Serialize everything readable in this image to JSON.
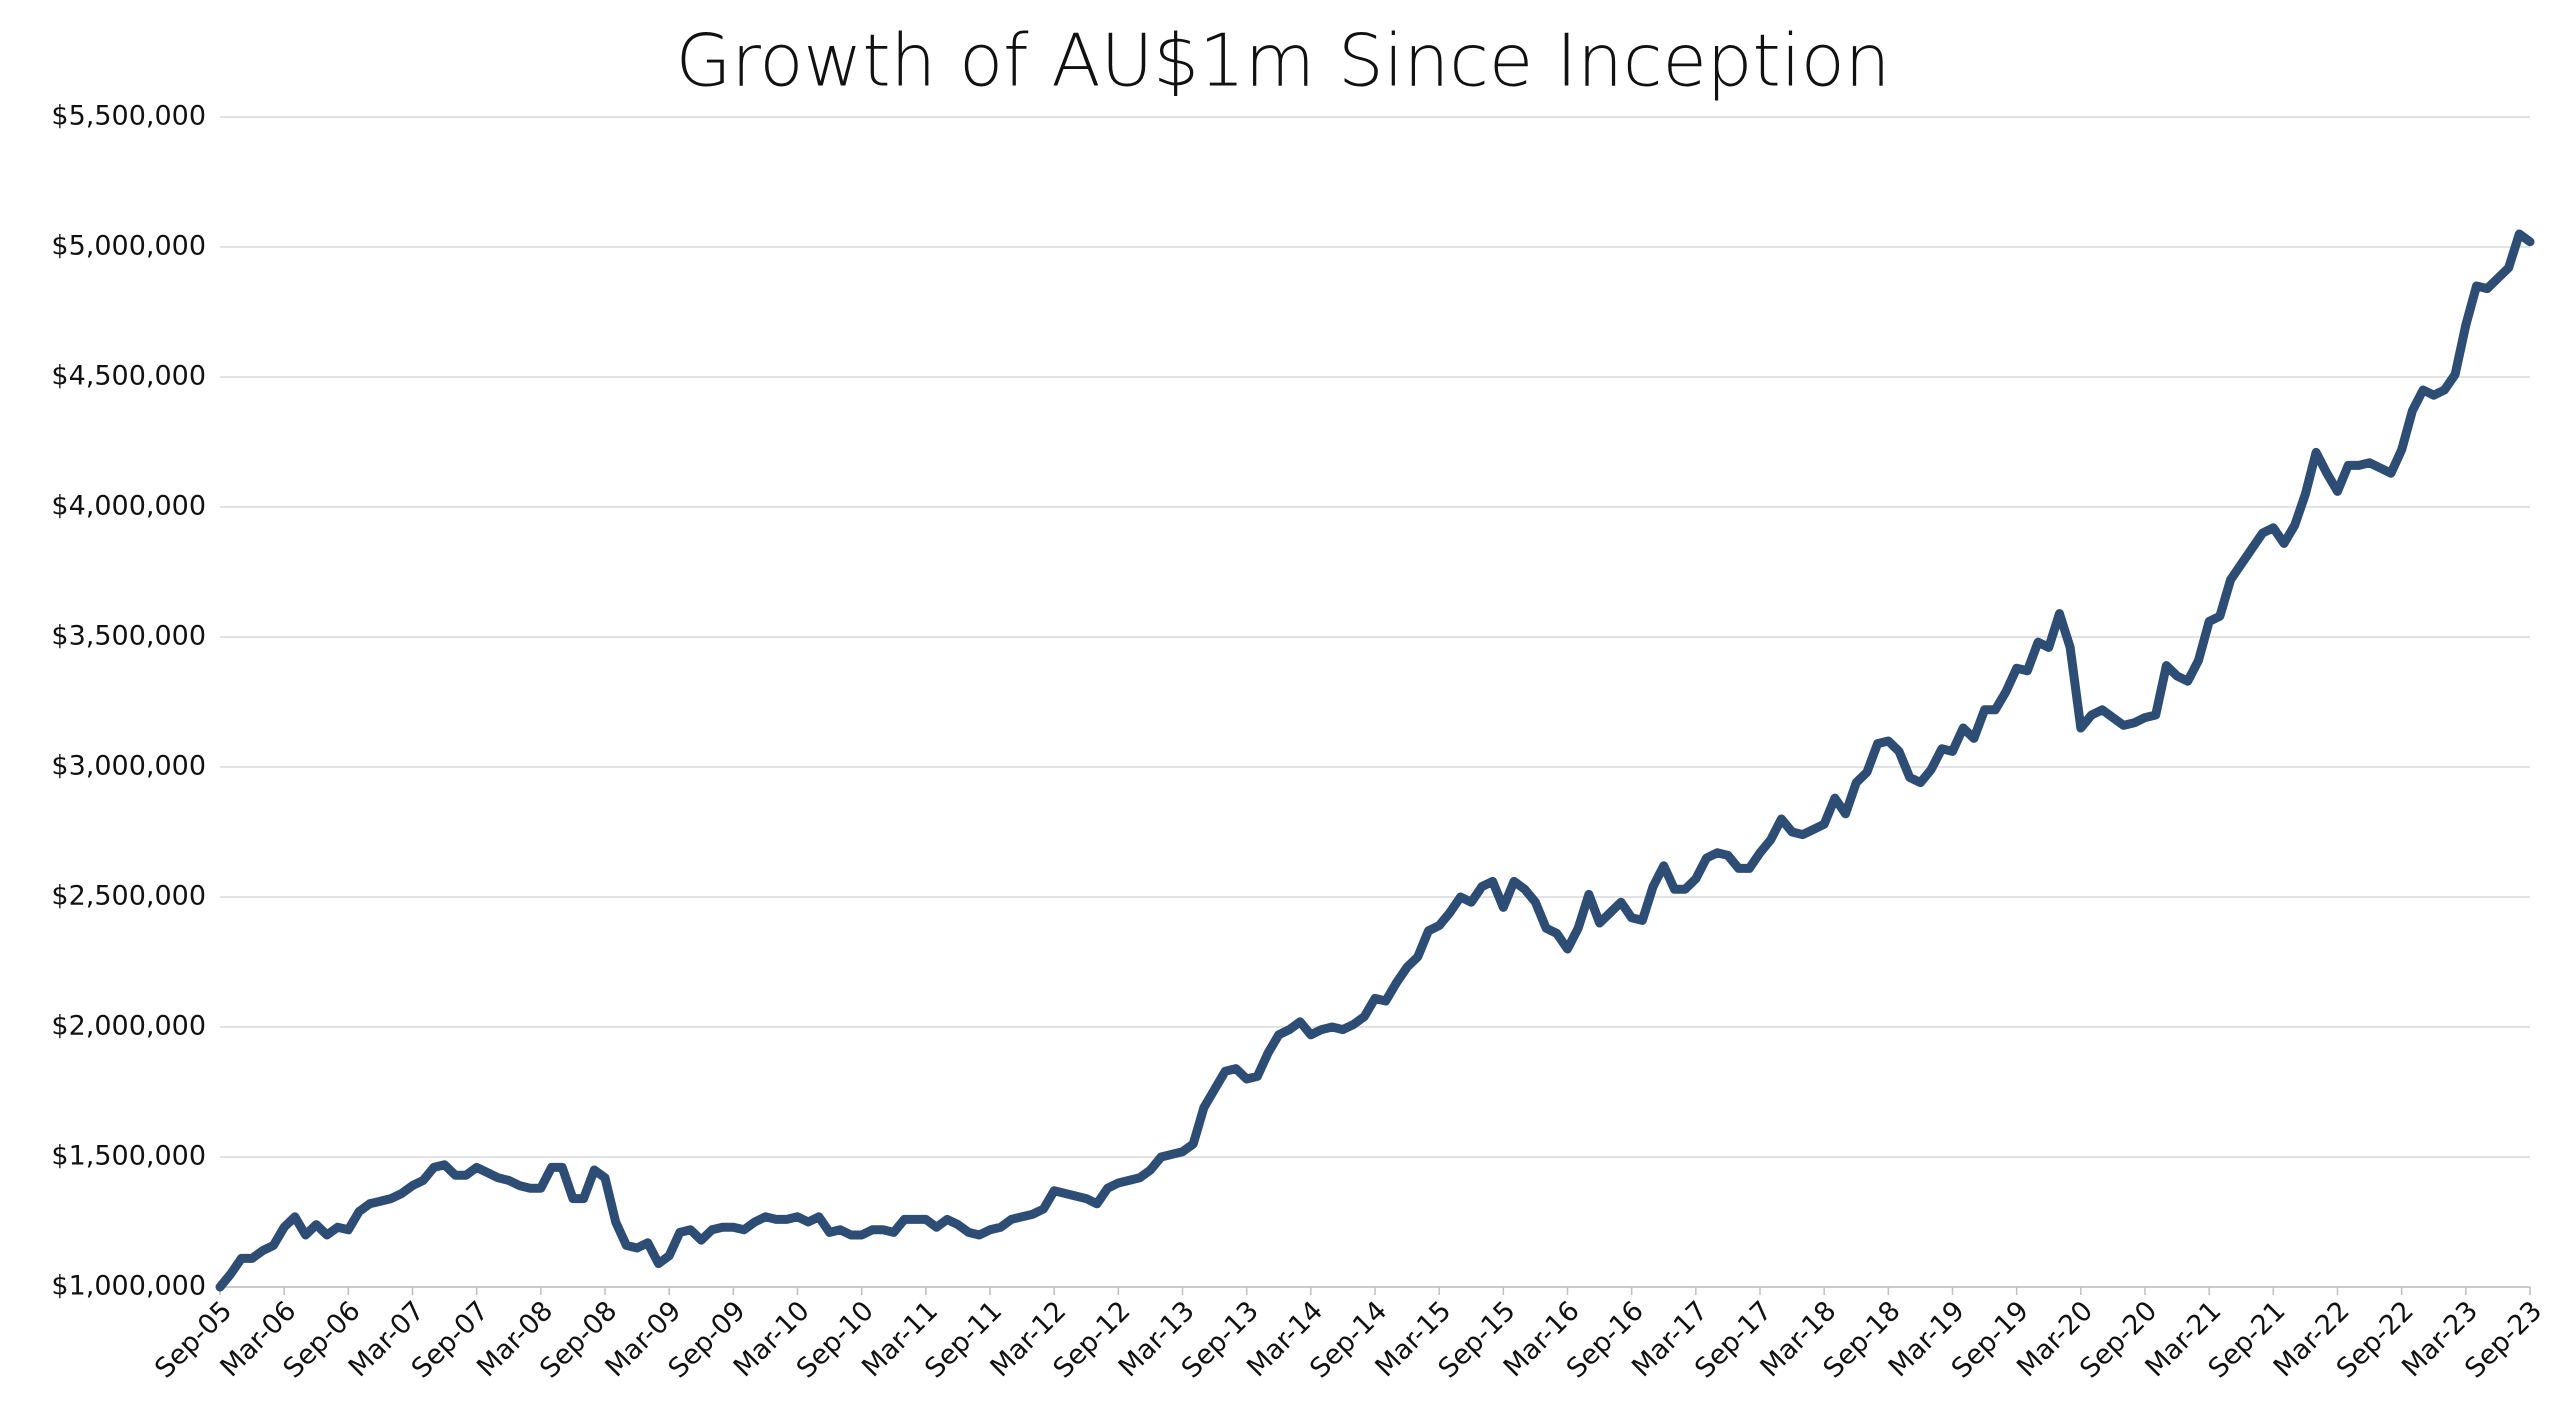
{
  "chart_data": {
    "type": "line",
    "title": "Growth of AU$1m Since Inception",
    "categories": [
      "Sep-05",
      null,
      null,
      null,
      null,
      null,
      "Mar-06",
      null,
      null,
      null,
      null,
      null,
      "Sep-06",
      null,
      null,
      null,
      null,
      null,
      "Mar-07",
      null,
      null,
      null,
      null,
      null,
      "Sep-07",
      null,
      null,
      null,
      null,
      null,
      "Mar-08",
      null,
      null,
      null,
      null,
      null,
      "Sep-08",
      null,
      null,
      null,
      null,
      null,
      "Mar-09",
      null,
      null,
      null,
      null,
      null,
      "Sep-09",
      null,
      null,
      null,
      null,
      null,
      "Mar-10",
      null,
      null,
      null,
      null,
      null,
      "Sep-10",
      null,
      null,
      null,
      null,
      null,
      "Mar-11",
      null,
      null,
      null,
      null,
      null,
      "Sep-11",
      null,
      null,
      null,
      null,
      null,
      "Mar-12",
      null,
      null,
      null,
      null,
      null,
      "Sep-12",
      null,
      null,
      null,
      null,
      null,
      "Mar-13",
      null,
      null,
      null,
      null,
      null,
      "Sep-13",
      null,
      null,
      null,
      null,
      null,
      "Mar-14",
      null,
      null,
      null,
      null,
      null,
      "Sep-14",
      null,
      null,
      null,
      null,
      null,
      "Mar-15",
      null,
      null,
      null,
      null,
      null,
      "Sep-15",
      null,
      null,
      null,
      null,
      null,
      "Mar-16",
      null,
      null,
      null,
      null,
      null,
      "Sep-16",
      null,
      null,
      null,
      null,
      null,
      "Mar-17",
      null,
      null,
      null,
      null,
      null,
      "Sep-17",
      null,
      null,
      null,
      null,
      null,
      "Mar-18",
      null,
      null,
      null,
      null,
      null,
      "Sep-18",
      null,
      null,
      null,
      null,
      null,
      "Mar-19",
      null,
      null,
      null,
      null,
      null,
      "Sep-19",
      null,
      null,
      null,
      null,
      null,
      "Mar-20",
      null,
      null,
      null,
      null,
      null,
      "Sep-20",
      null,
      null,
      null,
      null,
      null,
      "Mar-21",
      null,
      null,
      null,
      null,
      null,
      "Sep-21",
      null,
      null,
      null,
      null,
      null,
      "Mar-22",
      null,
      null,
      null,
      null,
      null,
      "Sep-22",
      null,
      null,
      null,
      null,
      null,
      "Mar-23",
      null,
      null,
      null,
      null,
      null,
      "Sep-23"
    ],
    "values": [
      1000000,
      1050000,
      1110000,
      1110000,
      1140000,
      1160000,
      1230000,
      1270000,
      1200000,
      1240000,
      1200000,
      1230000,
      1220000,
      1290000,
      1320000,
      1330000,
      1340000,
      1360000,
      1390000,
      1410000,
      1460000,
      1470000,
      1430000,
      1430000,
      1460000,
      1440000,
      1420000,
      1410000,
      1390000,
      1380000,
      1380000,
      1460000,
      1460000,
      1340000,
      1340000,
      1450000,
      1420000,
      1250000,
      1160000,
      1150000,
      1170000,
      1090000,
      1120000,
      1210000,
      1220000,
      1180000,
      1220000,
      1230000,
      1230000,
      1220000,
      1250000,
      1270000,
      1260000,
      1260000,
      1270000,
      1250000,
      1270000,
      1210000,
      1220000,
      1200000,
      1200000,
      1220000,
      1220000,
      1210000,
      1260000,
      1260000,
      1260000,
      1230000,
      1260000,
      1240000,
      1210000,
      1200000,
      1220000,
      1230000,
      1260000,
      1270000,
      1280000,
      1300000,
      1370000,
      1360000,
      1350000,
      1340000,
      1320000,
      1380000,
      1400000,
      1410000,
      1420000,
      1450000,
      1500000,
      1510000,
      1520000,
      1550000,
      1690000,
      1760000,
      1830000,
      1840000,
      1800000,
      1810000,
      1900000,
      1970000,
      1990000,
      2020000,
      1970000,
      1990000,
      2000000,
      1990000,
      2010000,
      2040000,
      2110000,
      2100000,
      2170000,
      2230000,
      2270000,
      2370000,
      2390000,
      2440000,
      2500000,
      2480000,
      2540000,
      2560000,
      2460000,
      2560000,
      2530000,
      2480000,
      2380000,
      2360000,
      2300000,
      2380000,
      2510000,
      2400000,
      2440000,
      2480000,
      2420000,
      2410000,
      2540000,
      2620000,
      2530000,
      2530000,
      2570000,
      2650000,
      2670000,
      2660000,
      2610000,
      2610000,
      2670000,
      2720000,
      2800000,
      2750000,
      2740000,
      2760000,
      2780000,
      2880000,
      2820000,
      2940000,
      2980000,
      3090000,
      3100000,
      3060000,
      2960000,
      2940000,
      2990000,
      3070000,
      3060000,
      3150000,
      3110000,
      3220000,
      3220000,
      3290000,
      3380000,
      3370000,
      3480000,
      3460000,
      3590000,
      3460000,
      3150000,
      3200000,
      3220000,
      3190000,
      3160000,
      3170000,
      3190000,
      3200000,
      3390000,
      3350000,
      3330000,
      3410000,
      3560000,
      3580000,
      3720000,
      3780000,
      3840000,
      3900000,
      3920000,
      3860000,
      3930000,
      4050000,
      4210000,
      4130000,
      4060000,
      4160000,
      4160000,
      4170000,
      4150000,
      4130000,
      4220000,
      4370000,
      4450000,
      4430000,
      4450000,
      4510000,
      4700000,
      4850000,
      4840000,
      4880000,
      4920000,
      5050000,
      5020000
    ],
    "color": "#2e4d75",
    "ylim": [
      1000000,
      5500000
    ],
    "yticks": [
      {
        "value": 1000000,
        "label": "$1,000,000"
      },
      {
        "value": 1500000,
        "label": "$1,500,000"
      },
      {
        "value": 2000000,
        "label": "$2,000,000"
      },
      {
        "value": 2500000,
        "label": "$2,500,000"
      },
      {
        "value": 3000000,
        "label": "$3,000,000"
      },
      {
        "value": 3500000,
        "label": "$3,500,000"
      },
      {
        "value": 4000000,
        "label": "$4,000,000"
      },
      {
        "value": 4500000,
        "label": "$4,500,000"
      },
      {
        "value": 5000000,
        "label": "$5,000,000"
      },
      {
        "value": 5500000,
        "label": "$5,500,000"
      }
    ],
    "grid": true
  }
}
